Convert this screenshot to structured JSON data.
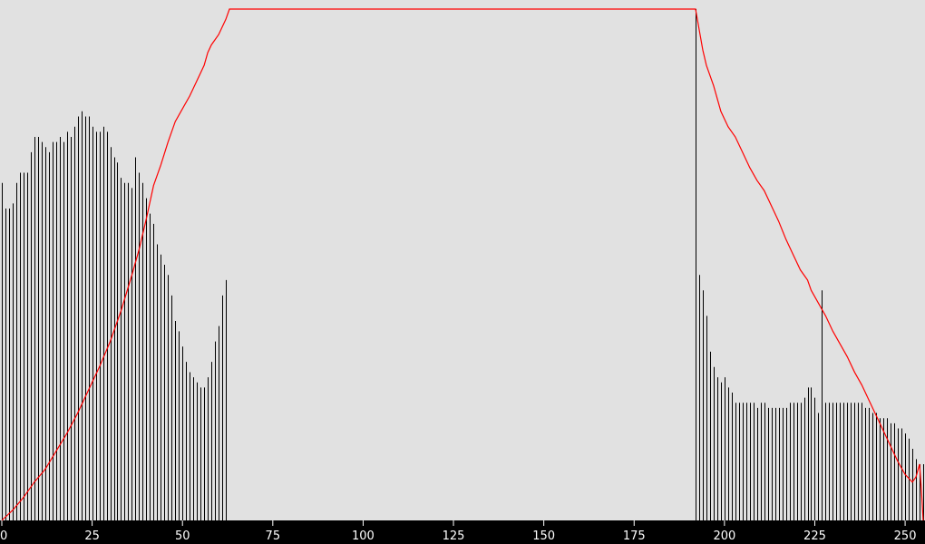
{
  "chart_data": {
    "type": "bar",
    "xlim": [
      0,
      255
    ],
    "ylim": [
      0,
      1
    ],
    "grid": false,
    "legend": "none",
    "x_ticks": [
      "0",
      "25",
      "50",
      "75",
      "100",
      "125",
      "150",
      "175",
      "200",
      "225",
      "250"
    ],
    "histogram": {
      "x_start": 0,
      "values": [
        0.66,
        0.61,
        0.61,
        0.62,
        0.66,
        0.68,
        0.68,
        0.68,
        0.72,
        0.75,
        0.75,
        0.74,
        0.73,
        0.72,
        0.74,
        0.74,
        0.75,
        0.74,
        0.76,
        0.75,
        0.77,
        0.79,
        0.8,
        0.79,
        0.79,
        0.77,
        0.76,
        0.76,
        0.77,
        0.76,
        0.73,
        0.71,
        0.7,
        0.67,
        0.66,
        0.66,
        0.65,
        0.71,
        0.68,
        0.66,
        0.63,
        0.6,
        0.58,
        0.54,
        0.52,
        0.5,
        0.48,
        0.44,
        0.39,
        0.37,
        0.34,
        0.31,
        0.29,
        0.28,
        0.27,
        0.26,
        0.26,
        0.28,
        0.31,
        0.35,
        0.38,
        0.44,
        0.47
      ],
      "peak_x": 192,
      "peak_value": 1.0,
      "right_x_start": 193,
      "right_values": [
        0.48,
        0.45,
        0.4,
        0.33,
        0.3,
        0.28,
        0.27,
        0.28,
        0.26,
        0.25,
        0.23,
        0.23,
        0.23,
        0.23,
        0.23,
        0.23,
        0.22,
        0.23,
        0.23,
        0.22,
        0.22,
        0.22,
        0.22,
        0.22,
        0.22,
        0.23,
        0.23,
        0.23,
        0.23,
        0.24,
        0.26,
        0.26,
        0.24,
        0.21,
        0.45,
        0.23,
        0.23,
        0.23,
        0.23,
        0.23,
        0.23,
        0.23,
        0.23,
        0.23,
        0.23,
        0.23,
        0.22,
        0.22,
        0.21,
        0.21,
        0.2,
        0.2,
        0.2,
        0.19,
        0.19,
        0.18,
        0.18,
        0.17,
        0.16,
        0.14,
        0.12,
        0.11,
        0.11
      ]
    },
    "curve": {
      "color": "#ff0000",
      "points": [
        [
          0,
          0.0
        ],
        [
          3,
          0.02
        ],
        [
          6,
          0.045
        ],
        [
          9,
          0.075
        ],
        [
          12,
          0.1
        ],
        [
          15,
          0.135
        ],
        [
          18,
          0.17
        ],
        [
          21,
          0.21
        ],
        [
          24,
          0.255
        ],
        [
          27,
          0.3
        ],
        [
          30,
          0.35
        ],
        [
          33,
          0.41
        ],
        [
          36,
          0.48
        ],
        [
          38,
          0.53
        ],
        [
          40,
          0.59
        ],
        [
          42,
          0.655
        ],
        [
          44,
          0.695
        ],
        [
          46,
          0.74
        ],
        [
          48,
          0.78
        ],
        [
          50,
          0.805
        ],
        [
          52,
          0.83
        ],
        [
          54,
          0.86
        ],
        [
          56,
          0.89
        ],
        [
          57,
          0.915
        ],
        [
          58,
          0.93
        ],
        [
          60,
          0.95
        ],
        [
          62,
          0.98
        ],
        [
          63,
          1.0
        ],
        [
          192,
          1.0
        ],
        [
          193,
          0.96
        ],
        [
          194,
          0.92
        ],
        [
          195,
          0.89
        ],
        [
          197,
          0.85
        ],
        [
          199,
          0.8
        ],
        [
          201,
          0.77
        ],
        [
          203,
          0.75
        ],
        [
          205,
          0.72
        ],
        [
          207,
          0.69
        ],
        [
          209,
          0.665
        ],
        [
          211,
          0.645
        ],
        [
          213,
          0.615
        ],
        [
          215,
          0.585
        ],
        [
          217,
          0.55
        ],
        [
          219,
          0.52
        ],
        [
          221,
          0.49
        ],
        [
          223,
          0.47
        ],
        [
          224,
          0.45
        ],
        [
          226,
          0.425
        ],
        [
          228,
          0.4
        ],
        [
          230,
          0.37
        ],
        [
          232,
          0.345
        ],
        [
          234,
          0.32
        ],
        [
          236,
          0.29
        ],
        [
          238,
          0.265
        ],
        [
          240,
          0.235
        ],
        [
          242,
          0.205
        ],
        [
          244,
          0.175
        ],
        [
          246,
          0.145
        ],
        [
          248,
          0.115
        ],
        [
          250,
          0.09
        ],
        [
          252,
          0.075
        ],
        [
          253,
          0.085
        ],
        [
          254,
          0.11
        ],
        [
          254.5,
          0.06
        ],
        [
          255,
          0.0
        ]
      ]
    }
  }
}
